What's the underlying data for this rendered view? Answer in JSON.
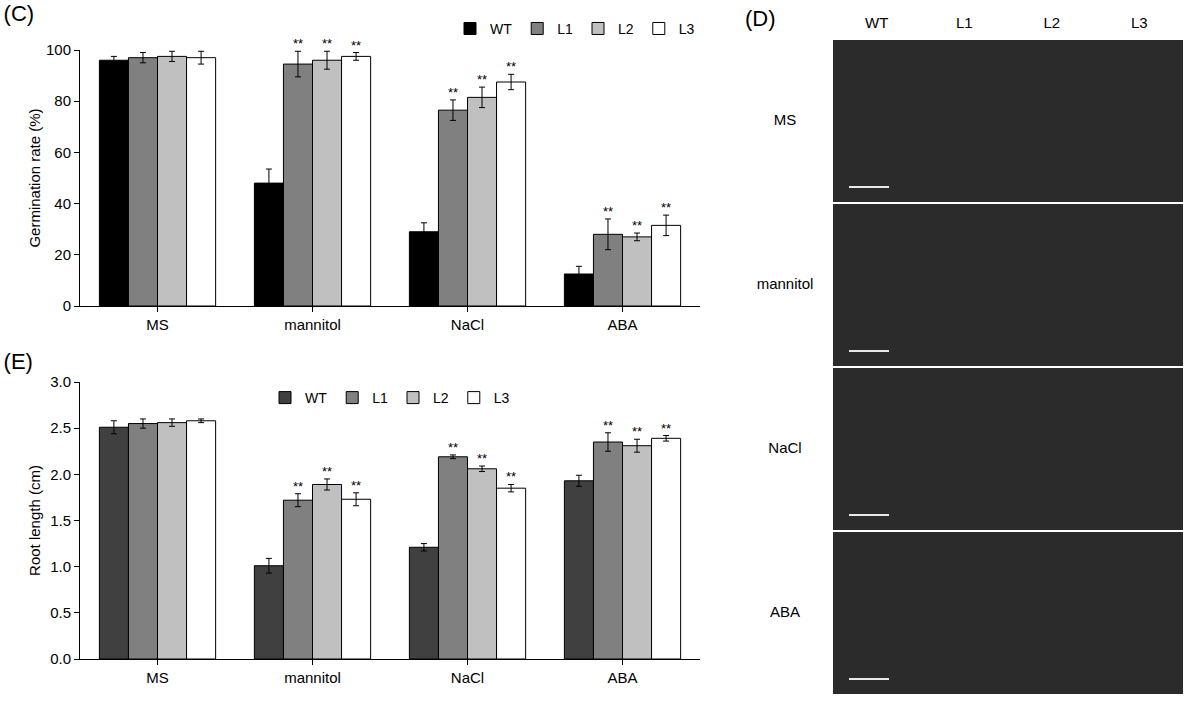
{
  "chart_data": [
    {
      "type": "bar",
      "title": "(C)",
      "categories": [
        "MS",
        "mannitol",
        "NaCl",
        "ABA"
      ],
      "y_label": "Germination rate (%)",
      "ylim": [
        0,
        100
      ],
      "yticks": [
        0,
        20,
        40,
        60,
        80,
        100
      ],
      "grid": false,
      "legend": "top right",
      "series": [
        {
          "name": "WT",
          "color": "#000000",
          "values": [
            96,
            48,
            29,
            12.5
          ],
          "errors": [
            1.5,
            5.5,
            3.5,
            3
          ],
          "significance": [
            null,
            null,
            null,
            null
          ]
        },
        {
          "name": "L1",
          "color": "#808080",
          "values": [
            97,
            94.5,
            76.5,
            28
          ],
          "errors": [
            2,
            5,
            4,
            6
          ],
          "significance": [
            null,
            "**",
            "**",
            "**"
          ]
        },
        {
          "name": "L2",
          "color": "#c0c0c0",
          "values": [
            97.5,
            96,
            81.5,
            27
          ],
          "errors": [
            2,
            3.5,
            4,
            1.5
          ],
          "significance": [
            null,
            "**",
            "**",
            "**"
          ]
        },
        {
          "name": "L3",
          "color": "#ffffff",
          "values": [
            97,
            97.5,
            87.5,
            31.5
          ],
          "errors": [
            2.5,
            1.5,
            3,
            4
          ],
          "significance": [
            null,
            "**",
            "**",
            "**"
          ]
        }
      ]
    },
    {
      "type": "bar",
      "title": "(E)",
      "categories": [
        "MS",
        "mannitol",
        "NaCl",
        "ABA"
      ],
      "y_label": "Root length (cm)",
      "ylim": [
        0,
        3
      ],
      "yticks": [
        {
          "value": 0,
          "label": "0.0"
        },
        0.5,
        {
          "value": 1,
          "label": "1.0"
        },
        1.5,
        {
          "value": 2,
          "label": "2.0"
        },
        2.5,
        {
          "value": 3,
          "label": "3.0"
        }
      ],
      "grid": false,
      "legend": "top",
      "series": [
        {
          "name": "WT",
          "color": "#404040",
          "values": [
            2.51,
            1.01,
            1.21,
            1.93
          ],
          "errors": [
            0.07,
            0.08,
            0.04,
            0.06
          ],
          "significance": [
            null,
            null,
            null,
            null
          ]
        },
        {
          "name": "L1",
          "color": "#808080",
          "values": [
            2.55,
            1.72,
            2.19,
            2.35
          ],
          "errors": [
            0.05,
            0.07,
            0.02,
            0.1
          ],
          "significance": [
            null,
            "**",
            "**",
            "**"
          ]
        },
        {
          "name": "L2",
          "color": "#c0c0c0",
          "values": [
            2.56,
            1.89,
            2.06,
            2.31
          ],
          "errors": [
            0.04,
            0.06,
            0.03,
            0.07
          ],
          "significance": [
            null,
            "**",
            "**",
            "**"
          ]
        },
        {
          "name": "L3",
          "color": "#ffffff",
          "values": [
            2.58,
            1.73,
            1.85,
            2.39
          ],
          "errors": [
            0.02,
            0.07,
            0.04,
            0.03
          ],
          "significance": [
            null,
            "**",
            "**",
            "**"
          ]
        }
      ]
    }
  ],
  "panel_D": {
    "title": "(D)",
    "columns": [
      "WT",
      "L1",
      "L2",
      "L3"
    ],
    "rows": [
      "MS",
      "mannitol",
      "NaCl",
      "ABA"
    ]
  }
}
